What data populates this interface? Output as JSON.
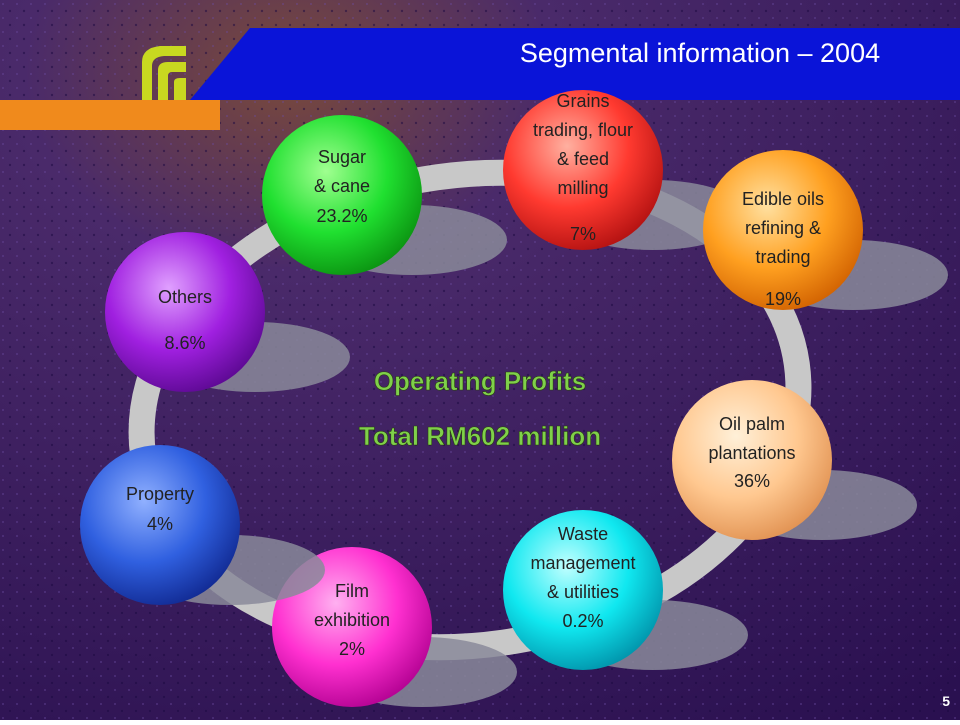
{
  "header": {
    "title": "Segmental information – 2004"
  },
  "center": {
    "line1": "Operating Profits",
    "line2": "Total RM602 million"
  },
  "nodes": [
    {
      "lines": [
        "Sugar",
        "& cane"
      ],
      "value": "23.2%"
    },
    {
      "lines": [
        "Grains",
        "trading, flour",
        "& feed",
        "milling"
      ],
      "value": "7%"
    },
    {
      "lines": [
        "Edible oils",
        "refining &",
        "trading"
      ],
      "value": "19%"
    },
    {
      "lines": [
        "Oil palm",
        "plantations"
      ],
      "value": "36%"
    },
    {
      "lines": [
        "Waste",
        "management",
        "& utilities"
      ],
      "value": "0.2%"
    },
    {
      "lines": [
        "Film",
        "exhibition"
      ],
      "value": "2%"
    },
    {
      "lines": [
        "Property"
      ],
      "value": "4%"
    },
    {
      "lines": [
        "Others"
      ],
      "value": "8.6%"
    }
  ],
  "page_number": "5"
}
